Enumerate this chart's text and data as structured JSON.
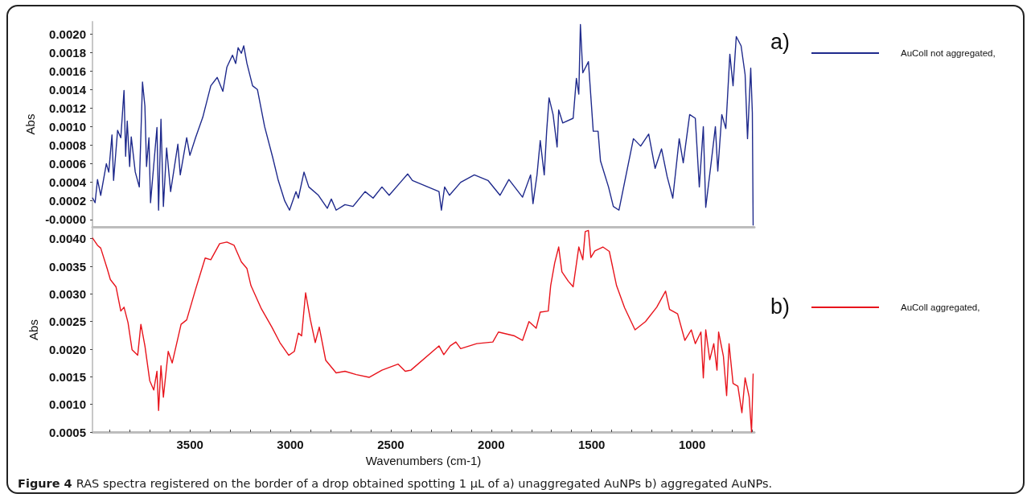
{
  "chart_data": [
    {
      "type": "line",
      "ylabel": "Abs",
      "xlim": [
        3985,
        690
      ],
      "ylim": [
        -8e-05,
        0.00213
      ],
      "yticks": [
        {
          "value": 0,
          "label": "-0.0000"
        },
        {
          "value": 0.0002,
          "label": "0.0002"
        },
        {
          "value": 0.0004,
          "label": "0.0004"
        },
        {
          "value": 0.0006,
          "label": "0.0006"
        },
        {
          "value": 0.0008,
          "label": "0.0008"
        },
        {
          "value": 0.001,
          "label": "0.0010"
        },
        {
          "value": 0.0012,
          "label": "0.0012"
        },
        {
          "value": 0.0014,
          "label": "0.0014"
        },
        {
          "value": 0.0016,
          "label": "0.0016"
        },
        {
          "value": 0.0018,
          "label": "0.0018"
        },
        {
          "value": 0.002,
          "label": "0.0020"
        }
      ],
      "tick_labels": "y",
      "grid": false,
      "legend": "right",
      "marker": "none",
      "line_style": "solid",
      "annotations": [
        "a)"
      ],
      "series": [
        {
          "name": "AuColl not aggregated,",
          "color": "#1f2a8c",
          "x": [
            3984,
            3972,
            3960,
            3944,
            3916,
            3904,
            3888,
            3880,
            3860,
            3844,
            3828,
            3820,
            3812,
            3800,
            3792,
            3772,
            3752,
            3736,
            3724,
            3716,
            3704,
            3696,
            3664,
            3656,
            3644,
            3632,
            3616,
            3596,
            3560,
            3548,
            3516,
            3500,
            3472,
            3436,
            3396,
            3364,
            3336,
            3316,
            3288,
            3272,
            3260,
            3244,
            3232,
            3216,
            3188,
            3164,
            3128,
            3088,
            3060,
            3028,
            3004,
            2972,
            2960,
            2932,
            2908,
            2860,
            2816,
            2796,
            2772,
            2728,
            2688,
            2628,
            2588,
            2544,
            2508,
            2452,
            2416,
            2392,
            2260,
            2248,
            2232,
            2208,
            2152,
            2084,
            2016,
            1956,
            1912,
            1844,
            1804,
            1792,
            1772,
            1756,
            1736,
            1724,
            1712,
            1692,
            1672,
            1664,
            1644,
            1592,
            1576,
            1564,
            1556,
            1544,
            1516,
            1492,
            1468,
            1456,
            1416,
            1392,
            1364,
            1336,
            1292,
            1256,
            1216,
            1184,
            1152,
            1124,
            1096,
            1064,
            1044,
            1012,
            984,
            964,
            944,
            932,
            904,
            884,
            872,
            852,
            832,
            812,
            796,
            780,
            756,
            736,
            724,
            708,
            700,
            696
          ],
          "values": [
            0.00023,
            0.00018,
            0.00043,
            0.00026,
            0.0006,
            0.00051,
            0.00091,
            0.00042,
            0.00096,
            0.00088,
            0.00139,
            0.00068,
            0.00106,
            0.00057,
            0.00089,
            0.00051,
            0.00035,
            0.00148,
            0.00122,
            0.00057,
            0.00088,
            0.00018,
            0.00099,
            0.0001,
            0.00108,
            0.00014,
            0.00077,
            0.0003,
            0.00081,
            0.00048,
            0.00088,
            0.00069,
            0.00088,
            0.0011,
            0.00144,
            0.00153,
            0.00138,
            0.00164,
            0.00177,
            0.00168,
            0.00185,
            0.00179,
            0.00187,
            0.00168,
            0.00144,
            0.0014,
            0.001,
            0.00067,
            0.00042,
            0.0002,
            0.0001,
            0.0003,
            0.00023,
            0.00051,
            0.00035,
            0.00026,
            0.00012,
            0.00022,
            0.0001,
            0.00016,
            0.00014,
            0.0003,
            0.00023,
            0.00035,
            0.00026,
            0.0004,
            0.00049,
            0.00042,
            0.0003,
            0.0001,
            0.00035,
            0.00026,
            0.0004,
            0.00048,
            0.00042,
            0.00026,
            0.00043,
            0.00024,
            0.00048,
            0.00017,
            0.00048,
            0.00085,
            0.00048,
            0.00095,
            0.00131,
            0.00113,
            0.00078,
            0.00118,
            0.00104,
            0.00109,
            0.00152,
            0.00135,
            0.0021,
            0.00158,
            0.0017,
            0.00095,
            0.00095,
            0.00063,
            0.00035,
            0.00014,
            0.0001,
            0.0004,
            0.00087,
            0.00079,
            0.00092,
            0.00055,
            0.00076,
            0.00046,
            0.00023,
            0.00087,
            0.00061,
            0.00113,
            0.00109,
            0.00035,
            0.001,
            0.00013,
            0.00063,
            0.001,
            0.00052,
            0.00113,
            0.00098,
            0.00178,
            0.00144,
            0.00197,
            0.00187,
            0.00156,
            0.00087,
            0.00163,
            0.00115,
            -6e-05
          ]
        }
      ]
    },
    {
      "type": "line",
      "xlabel": "Wavenumbers (cm-1)",
      "ylabel": "Abs",
      "xlim": [
        3985,
        690
      ],
      "ylim": [
        0.0005,
        0.0042
      ],
      "xticks": [
        {
          "value": 3900,
          "label": null
        },
        {
          "value": 3800,
          "label": null
        },
        {
          "value": 3700,
          "label": null
        },
        {
          "value": 3600,
          "label": null
        },
        3500,
        {
          "value": 3400,
          "label": null
        },
        {
          "value": 3300,
          "label": null
        },
        {
          "value": 3200,
          "label": null
        },
        {
          "value": 3100,
          "label": null
        },
        3000,
        {
          "value": 2900,
          "label": null
        },
        {
          "value": 2800,
          "label": null
        },
        {
          "value": 2700,
          "label": null
        },
        {
          "value": 2600,
          "label": null
        },
        2500,
        {
          "value": 2400,
          "label": null
        },
        {
          "value": 2300,
          "label": null
        },
        {
          "value": 2200,
          "label": null
        },
        {
          "value": 2100,
          "label": null
        },
        2000,
        {
          "value": 1900,
          "label": null
        },
        {
          "value": 1800,
          "label": null
        },
        {
          "value": 1700,
          "label": null
        },
        {
          "value": 1600,
          "label": null
        },
        1500,
        {
          "value": 1400,
          "label": null
        },
        {
          "value": 1300,
          "label": null
        },
        {
          "value": 1200,
          "label": null
        },
        {
          "value": 1100,
          "label": null
        },
        1000,
        {
          "value": 900,
          "label": null
        },
        {
          "value": 800,
          "label": null
        },
        {
          "value": 700,
          "label": null
        }
      ],
      "yticks": [
        {
          "value": 0.0005,
          "label": "0.0005"
        },
        {
          "value": 0.001,
          "label": "0.0010"
        },
        {
          "value": 0.0015,
          "label": "0.0015"
        },
        {
          "value": 0.002,
          "label": "0.0020"
        },
        {
          "value": 0.0025,
          "label": "0.0025"
        },
        {
          "value": 0.003,
          "label": "0.0030"
        },
        {
          "value": 0.0035,
          "label": "0.0035"
        },
        {
          "value": 0.004,
          "label": "0.0040"
        }
      ],
      "grid": false,
      "legend": "right",
      "marker": "none",
      "line_style": "solid",
      "annotations": [
        "b)",
        "Figure 4",
        "RAS spectra registered on the border of a drop obtained spotting 1 µL of a) unaggregated AuNPs b) aggregated AuNPs."
      ],
      "series": [
        {
          "name": "AuColl aggregated,",
          "color": "#e8141c",
          "x": [
            3984,
            3960,
            3944,
            3912,
            3896,
            3868,
            3844,
            3828,
            3808,
            3788,
            3760,
            3744,
            3724,
            3700,
            3680,
            3664,
            3656,
            3644,
            3632,
            3608,
            3588,
            3544,
            3516,
            3472,
            3424,
            3396,
            3352,
            3316,
            3280,
            3244,
            3216,
            3196,
            3144,
            3092,
            3052,
            3008,
            2980,
            2960,
            2944,
            2924,
            2900,
            2876,
            2856,
            2824,
            2772,
            2728,
            2672,
            2608,
            2544,
            2464,
            2428,
            2400,
            2260,
            2236,
            2204,
            2176,
            2152,
            2072,
            1992,
            1964,
            1884,
            1844,
            1812,
            1776,
            1756,
            1716,
            1704,
            1684,
            1664,
            1648,
            1616,
            1592,
            1564,
            1544,
            1532,
            1516,
            1504,
            1484,
            1444,
            1412,
            1376,
            1336,
            1284,
            1232,
            1176,
            1132,
            1112,
            1072,
            1036,
            1004,
            984,
            956,
            944,
            932,
            912,
            892,
            876,
            868,
            844,
            828,
            816,
            796,
            772,
            752,
            736,
            716,
            704,
            696
          ],
          "values": [
            0.00401,
            0.00388,
            0.00383,
            0.00346,
            0.00326,
            0.00313,
            0.00269,
            0.00276,
            0.00248,
            0.00199,
            0.00189,
            0.00245,
            0.00206,
            0.00143,
            0.00126,
            0.0016,
            0.00089,
            0.0017,
            0.00113,
            0.00196,
            0.00175,
            0.00245,
            0.00253,
            0.00308,
            0.00365,
            0.00362,
            0.00391,
            0.00394,
            0.00388,
            0.00358,
            0.00346,
            0.00315,
            0.00273,
            0.0024,
            0.00212,
            0.00189,
            0.00196,
            0.00229,
            0.00224,
            0.00302,
            0.00253,
            0.00212,
            0.0024,
            0.0018,
            0.00157,
            0.0016,
            0.00154,
            0.00149,
            0.00162,
            0.00173,
            0.0016,
            0.00162,
            0.00206,
            0.0019,
            0.00206,
            0.00213,
            0.00201,
            0.0021,
            0.00213,
            0.00231,
            0.00224,
            0.00216,
            0.0025,
            0.00238,
            0.00267,
            0.00269,
            0.00315,
            0.00356,
            0.00385,
            0.0034,
            0.00323,
            0.00313,
            0.00385,
            0.00362,
            0.00413,
            0.00415,
            0.00366,
            0.00378,
            0.00385,
            0.00377,
            0.00315,
            0.00275,
            0.00235,
            0.0025,
            0.00276,
            0.00305,
            0.00272,
            0.00264,
            0.00216,
            0.00235,
            0.0021,
            0.00231,
            0.00148,
            0.00235,
            0.00181,
            0.0021,
            0.00162,
            0.00231,
            0.00187,
            0.00116,
            0.0021,
            0.00138,
            0.00133,
            0.00085,
            0.00148,
            0.00114,
            0.0005,
            0.00155
          ]
        }
      ]
    }
  ]
}
